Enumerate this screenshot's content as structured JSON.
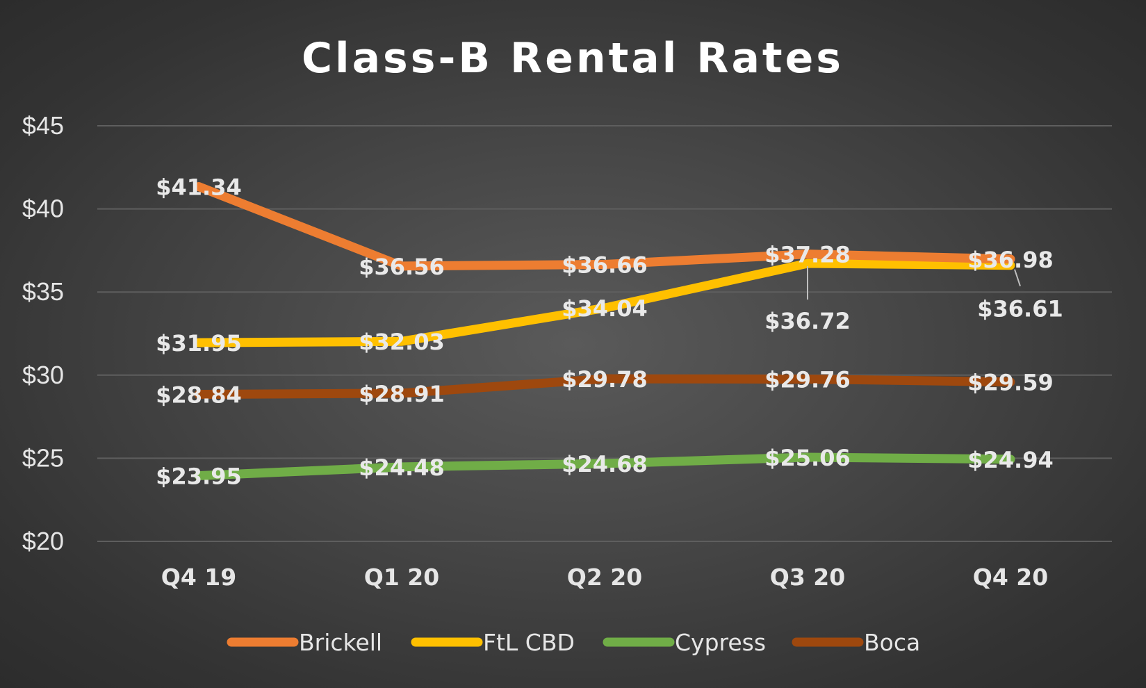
{
  "chart_data": {
    "type": "line",
    "title": "Class-B Rental Rates",
    "categories": [
      "Q4 19",
      "Q1 20",
      "Q2 20",
      "Q3 20",
      "Q4 20"
    ],
    "ylim": [
      20,
      45
    ],
    "yticks": [
      20,
      25,
      30,
      35,
      40,
      45
    ],
    "ytick_labels": [
      "$20",
      "$25",
      "$30",
      "$35",
      "$40",
      "$45"
    ],
    "xlabel": "",
    "ylabel": "",
    "grid": true,
    "legend_position": "bottom",
    "series": [
      {
        "name": "Brickell",
        "color": "#ed7d31",
        "values": [
          41.34,
          36.56,
          36.66,
          37.28,
          36.98
        ],
        "labels": [
          "$41.34",
          "$36.56",
          "$36.66",
          "$37.28",
          "$36.98"
        ]
      },
      {
        "name": "FtL CBD",
        "color": "#ffc000",
        "values": [
          31.95,
          32.03,
          34.04,
          36.72,
          36.61
        ],
        "labels": [
          "$31.95",
          "$32.03",
          "$34.04",
          "$36.72",
          "$36.61"
        ]
      },
      {
        "name": "Cypress",
        "color": "#70ad47",
        "values": [
          23.95,
          24.48,
          24.68,
          25.06,
          24.94
        ],
        "labels": [
          "$23.95",
          "$24.48",
          "$24.68",
          "$25.06",
          "$24.94"
        ]
      },
      {
        "name": "Boca",
        "color": "#9e480e",
        "values": [
          28.84,
          28.91,
          29.78,
          29.76,
          29.59
        ],
        "labels": [
          "$28.84",
          "$28.91",
          "$29.78",
          "$29.76",
          "$29.59"
        ]
      }
    ]
  }
}
